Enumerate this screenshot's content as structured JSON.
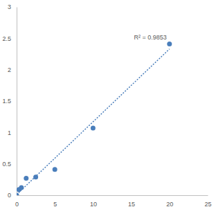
{
  "chart_data": {
    "type": "scatter",
    "x": [
      0,
      0.3125,
      0.625,
      1.25,
      2.5,
      5,
      10,
      20
    ],
    "values": [
      0,
      0.09,
      0.12,
      0.27,
      0.29,
      0.41,
      1.07,
      2.41
    ],
    "color": "#4a7ebb",
    "marker": "circle",
    "xlim": [
      0,
      25
    ],
    "xticks": [
      0,
      5,
      10,
      15,
      20,
      25
    ],
    "ylim": [
      0,
      3
    ],
    "yticks": [
      0,
      0.5,
      1,
      1.5,
      2,
      2.5,
      3
    ],
    "grid": false,
    "trendline": {
      "x": [
        0,
        20
      ],
      "values": [
        0.01,
        2.33
      ],
      "line_style": "dotted"
    },
    "annotation": "R² = 0.9853"
  }
}
